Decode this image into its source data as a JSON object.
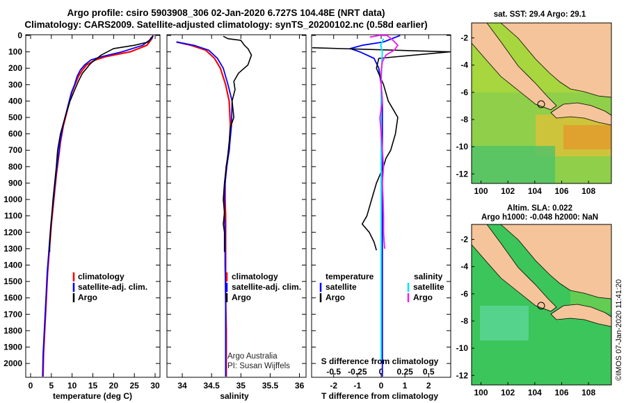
{
  "title_line1": "Argo profile: csiro 5903908_306 02-Jan-2020 6.727S 104.48E (NRT data)",
  "title_line2": "Climatology: CARS2009. Satellite-adjusted climatology: synTS_20200102.nc (0.58d earlier)",
  "depth_ticks": [
    "0",
    "100",
    "200",
    "300",
    "400",
    "500",
    "600",
    "700",
    "800",
    "900",
    "1000",
    "1100",
    "1200",
    "1300",
    "1400",
    "1500",
    "1600",
    "1700",
    "1800",
    "1900",
    "2000"
  ],
  "legend_main": {
    "climatology": "climatology",
    "satellite": "satellite-adj. clim.",
    "argo": "Argo"
  },
  "legend_diff": {
    "temperature": "temperature",
    "salinity": "salinity",
    "satellite": "satellite",
    "argo": "Argo"
  },
  "credit": {
    "line1": "Argo Australia",
    "line2": "PI: Susan Wijffels"
  },
  "s_diff_title": "S difference from climatology",
  "s_diff_ticks": [
    "-0.5",
    "-0.25",
    "0",
    "0.25",
    "0.5"
  ],
  "map_top": {
    "title": "sat. SST: 29.4 Argo: 29.1"
  },
  "map_bottom": {
    "title_line1": "Altim. SLA: 0.022",
    "title_line2": "Argo h1000: -0.048 h2000: NaN"
  },
  "map_lon_ticks": [
    "100",
    "102",
    "104",
    "106",
    "108"
  ],
  "map_lat_ticks": [
    "-2",
    "-4",
    "-6",
    "-8",
    "-10",
    "-12"
  ],
  "imos_stamp": "©IMOS 07-Jan-2020 11:41:20",
  "colors": {
    "climatology": "#ff0000",
    "satellite": "#0000ff",
    "argo": "#000000",
    "sat_salinity": "#00e5ff",
    "argo_salinity": "#ee22ee",
    "land": "#f5c49a"
  },
  "chart_data": [
    {
      "type": "line",
      "xlabel": "temperature (deg C)",
      "ylabel": "",
      "xlim": [
        -1,
        31
      ],
      "ylim": [
        2080,
        0
      ],
      "xticks": [
        "0",
        "5",
        "10",
        "15",
        "20",
        "25",
        "30"
      ],
      "series": [
        {
          "name": "climatology",
          "x": [
            29.5,
            29.2,
            28,
            24,
            18,
            15.5,
            13.5,
            12.5,
            11.5,
            10.7,
            9.9,
            8.9,
            7.9,
            7.2,
            6.7,
            6.2,
            5.8,
            5.4,
            5.0,
            4.7,
            4.4,
            4.1,
            3.9,
            3.7,
            3.4,
            3.1,
            3.0
          ],
          "y": [
            0,
            20,
            60,
            100,
            130,
            150,
            180,
            210,
            250,
            300,
            350,
            450,
            550,
            650,
            750,
            850,
            950,
            1050,
            1150,
            1250,
            1350,
            1450,
            1550,
            1650,
            1800,
            1950,
            2080
          ]
        },
        {
          "name": "satellite-adj. clim.",
          "x": [
            29.5,
            29.1,
            27,
            22,
            17,
            14.5,
            13,
            12,
            11.2,
            10.6,
            9.8,
            8.8,
            7.8,
            7.1,
            6.6,
            6.1,
            5.7,
            5.3,
            4.9,
            4.6,
            4.3,
            4.0,
            3.8,
            3.6,
            3.3,
            3.0,
            2.9
          ],
          "y": [
            0,
            20,
            60,
            100,
            130,
            150,
            180,
            210,
            250,
            300,
            350,
            450,
            550,
            650,
            750,
            850,
            950,
            1050,
            1150,
            1250,
            1350,
            1450,
            1550,
            1650,
            1800,
            1950,
            2080
          ]
        },
        {
          "name": "Argo",
          "x": [
            29.5,
            29,
            28.4,
            25,
            20,
            17,
            14.5,
            12.5,
            11.5,
            10.5,
            9.5,
            8.3,
            7.2,
            6.5,
            6.2,
            5.8,
            5.4,
            5.1,
            4.8,
            4.6,
            4.6
          ],
          "y": [
            5,
            15,
            40,
            60,
            80,
            120,
            170,
            230,
            280,
            340,
            400,
            500,
            600,
            700,
            800,
            900,
            1000,
            1100,
            1200,
            1280,
            1320
          ]
        }
      ]
    },
    {
      "type": "line",
      "xlabel": "salinity",
      "ylabel": "",
      "xlim": [
        33.75,
        36.1
      ],
      "ylim": [
        2080,
        0
      ],
      "xticks": [
        "34",
        "34.5",
        "35",
        "35.5",
        "36"
      ],
      "series": [
        {
          "name": "climatology",
          "x": [
            33.9,
            34.15,
            34.4,
            34.55,
            34.65,
            34.74,
            34.8,
            34.82,
            34.8,
            34.75,
            34.73,
            34.73,
            34.74,
            34.74,
            34.74,
            34.74,
            34.75,
            34.75,
            34.75
          ],
          "y": [
            40,
            60,
            90,
            140,
            200,
            300,
            400,
            550,
            700,
            800,
            900,
            1000,
            1100,
            1200,
            1400,
            1600,
            1800,
            1950,
            2080
          ]
        },
        {
          "name": "satellite-adj. clim.",
          "x": [
            33.9,
            34.2,
            34.45,
            34.6,
            34.7,
            34.78,
            34.85,
            34.84,
            34.8,
            34.76,
            34.73,
            34.72,
            34.72,
            34.73,
            34.73,
            34.74,
            34.74,
            34.74,
            34.74
          ],
          "y": [
            40,
            60,
            90,
            140,
            200,
            300,
            400,
            550,
            700,
            800,
            900,
            1000,
            1100,
            1200,
            1400,
            1600,
            1800,
            1950,
            2080
          ]
        },
        {
          "name": "Argo",
          "x": [
            34.7,
            34.78,
            35.0,
            35.06,
            35.12,
            35.18,
            35.12,
            34.96,
            34.88,
            34.9,
            34.85,
            34.88,
            34.82,
            34.8,
            34.78,
            34.75,
            34.72,
            34.7,
            34.72,
            34.7,
            34.72,
            34.72,
            34.72
          ],
          "y": [
            5,
            20,
            30,
            60,
            80,
            120,
            180,
            230,
            280,
            330,
            400,
            500,
            560,
            650,
            720,
            800,
            900,
            1000,
            1080,
            1150,
            1200,
            1260,
            1320
          ]
        }
      ]
    },
    {
      "type": "line",
      "xlabel": "T difference from climatology",
      "ylabel": "",
      "xlim": [
        -2.9,
        2.9
      ],
      "ylim": [
        2080,
        0
      ],
      "xticks": [
        "-2",
        "-1",
        "0",
        "1",
        "2"
      ],
      "series": [
        {
          "name": "temperature satellite",
          "x": [
            0.8,
            0.1,
            -0.8,
            -1.3,
            -0.9,
            -0.3,
            -0.1,
            0.0,
            0.05,
            0.05,
            0.05,
            0.05,
            0.05,
            0.05,
            0.05,
            0.05,
            0.05,
            0.05
          ],
          "y": [
            0,
            40,
            60,
            80,
            100,
            140,
            200,
            300,
            400,
            500,
            700,
            900,
            1100,
            1300,
            1500,
            1700,
            1900,
            2080
          ]
        },
        {
          "name": "temperature Argo",
          "x": [
            -2.9,
            2.9,
            -0.1,
            -0.2,
            0.1,
            0.3,
            0.5,
            0.7,
            0.6,
            0.4,
            0.2,
            0.1,
            -0.2,
            -0.4,
            -0.6,
            -0.8,
            -0.5,
            -0.3,
            -0.2
          ],
          "y": [
            75,
            100,
            140,
            200,
            300,
            400,
            450,
            500,
            600,
            700,
            750,
            800,
            900,
            1000,
            1100,
            1150,
            1200,
            1260,
            1310
          ]
        },
        {
          "name": "salinity satellite",
          "x": [
            0.1,
            -0.02,
            0.05,
            0.02,
            0.0,
            0.0,
            0.0,
            0.0,
            0.0,
            0.0,
            0.0,
            0.0,
            0.0
          ],
          "y": [
            20,
            60,
            100,
            200,
            300,
            500,
            700,
            900,
            1100,
            1300,
            1500,
            1700,
            2000
          ]
        },
        {
          "name": "salinity Argo",
          "x": [
            -0.45,
            -0.45,
            -0.1,
            0.25,
            0.5,
            0.7,
            0.55,
            0.2,
            0.05,
            0.0,
            0.0,
            0.05,
            -0.05,
            0.0,
            0.05,
            0.1,
            0.05,
            0.08,
            0.1,
            0.1,
            0.12,
            0.15
          ],
          "y": [
            5,
            10,
            0,
            0,
            30,
            60,
            90,
            120,
            160,
            220,
            300,
            400,
            500,
            600,
            700,
            800,
            900,
            1000,
            1100,
            1200,
            1250,
            1300
          ]
        }
      ]
    }
  ]
}
